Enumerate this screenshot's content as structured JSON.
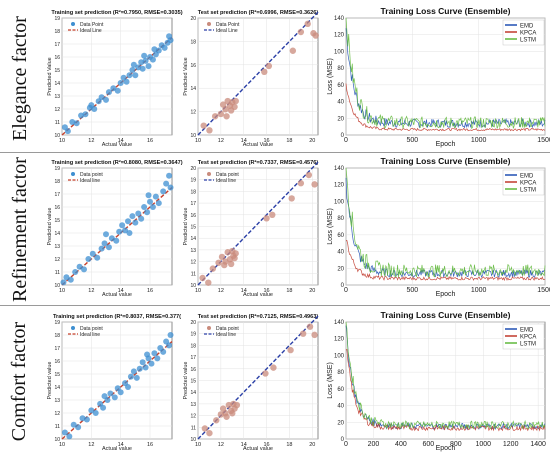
{
  "colors": {
    "train_point": "#3d8fd1",
    "test_point": "#c98b7c",
    "ideal_train": "#c8402b",
    "ideal_test": "#2a3fa6",
    "emd": "#1f4fb3",
    "kpca": "#c0392b",
    "lstm": "#5fb83a"
  },
  "rows": [
    {
      "label": "Elegance factor",
      "train": {
        "title": "Training set prediction (R²=0.7950, RMSE=0.3035)",
        "xlabel": "Actual Value",
        "ylabel": "Predicted Value",
        "legend": [
          "Data Point",
          "Ideal Line"
        ]
      },
      "test": {
        "title": "Test set prediction (R²=0.6996, RMSE=0.3626)",
        "xlabel": "Actual Value",
        "ylabel": "Predicted Value",
        "legend": [
          "Data Point",
          "Ideal Line"
        ]
      },
      "loss": {
        "title": "Training Loss Curve (Ensemble)",
        "xlabel": "Epoch",
        "ylabel": "Loss (MSE)",
        "legend": [
          "EMD",
          "KPCA",
          "LSTM"
        ]
      }
    },
    {
      "label": "Refinement factor",
      "train": {
        "title": "Training set prediction (R²=0.8080, RMSE=0.3647)",
        "xlabel": "Actual value",
        "ylabel": "Predicted value",
        "legend": [
          "Data point",
          "Ideal line"
        ]
      },
      "test": {
        "title": "Test set prediction (R²=0.7337, RMSE=0.4576)",
        "xlabel": "Actual value",
        "ylabel": "Predicted value",
        "legend": [
          "Data point",
          "Ideal line"
        ]
      },
      "loss": {
        "title": "Training Loss Curve (Ensemble)",
        "xlabel": "Epoch",
        "ylabel": "Loss (MSE)",
        "legend": [
          "EMD",
          "KPCA",
          "LSTM"
        ]
      }
    },
    {
      "label": "Comfort factor",
      "train": {
        "title": "Training set prediction (R²=0.8037, RMSE=0.377(",
        "xlabel": "Actual value",
        "ylabel": "Predicted value",
        "legend": [
          "Data point",
          "Ideal line"
        ]
      },
      "test": {
        "title": "Test set prediction (R²=0.7125, RMSE=0.4963)",
        "xlabel": "Actual value",
        "ylabel": "Predicted value",
        "legend": [
          "Data point",
          "Ideal line"
        ]
      },
      "loss": {
        "title": "Training Loss Curve (Ensemble)",
        "xlabel": "Epoch",
        "ylabel": "Loss (MSE)",
        "legend": [
          "EMD",
          "KPCA",
          "LSTM"
        ]
      }
    }
  ],
  "chart_data": [
    {
      "type": "scatter",
      "panel": "elegance-train",
      "xlim": [
        10,
        17.5
      ],
      "ylim": [
        10,
        19
      ],
      "xticks": [
        10,
        12,
        14,
        16
      ],
      "yticks": [
        10,
        11,
        12,
        13,
        14,
        15,
        16,
        17,
        18,
        19
      ],
      "ideal_line": [
        [
          10,
          10
        ],
        [
          17.5,
          17.5
        ]
      ],
      "points": [
        [
          10.2,
          10.6
        ],
        [
          10.4,
          10.3
        ],
        [
          10.7,
          11.0
        ],
        [
          11.0,
          10.9
        ],
        [
          11.3,
          11.5
        ],
        [
          11.6,
          11.6
        ],
        [
          11.9,
          12.1
        ],
        [
          12.2,
          12.0
        ],
        [
          12.5,
          12.6
        ],
        [
          12.7,
          12.9
        ],
        [
          13.0,
          12.7
        ],
        [
          13.2,
          13.3
        ],
        [
          13.5,
          13.6
        ],
        [
          13.8,
          13.4
        ],
        [
          14.0,
          14.0
        ],
        [
          14.2,
          14.4
        ],
        [
          14.4,
          14.1
        ],
        [
          14.6,
          14.6
        ],
        [
          14.8,
          15.0
        ],
        [
          15.0,
          14.6
        ],
        [
          15.2,
          15.2
        ],
        [
          15.4,
          15.6
        ],
        [
          15.5,
          15.1
        ],
        [
          15.7,
          15.7
        ],
        [
          15.9,
          15.3
        ],
        [
          16.0,
          16.0
        ],
        [
          16.2,
          15.8
        ],
        [
          16.4,
          16.2
        ],
        [
          16.6,
          16.5
        ],
        [
          16.8,
          16.9
        ],
        [
          17.0,
          16.7
        ],
        [
          17.2,
          17.1
        ],
        [
          17.3,
          17.6
        ],
        [
          17.4,
          17.3
        ],
        [
          12.0,
          12.3
        ],
        [
          14.9,
          15.4
        ],
        [
          15.6,
          16.1
        ],
        [
          16.3,
          16.6
        ]
      ]
    },
    {
      "type": "scatter",
      "panel": "elegance-test",
      "xlim": [
        10,
        20.5
      ],
      "ylim": [
        10,
        20
      ],
      "xticks": [
        10,
        12,
        14,
        16,
        18,
        20
      ],
      "yticks": [
        10,
        12,
        14,
        16,
        18,
        20
      ],
      "ideal_line": [
        [
          10,
          10
        ],
        [
          20.5,
          20.5
        ]
      ],
      "points": [
        [
          10.5,
          10.8
        ],
        [
          11.0,
          10.4
        ],
        [
          11.5,
          11.6
        ],
        [
          12.0,
          11.8
        ],
        [
          12.2,
          12.6
        ],
        [
          12.4,
          12.2
        ],
        [
          12.6,
          12.9
        ],
        [
          12.8,
          12.5
        ],
        [
          13.0,
          12.8
        ],
        [
          13.2,
          12.4
        ],
        [
          13.3,
          12.9
        ],
        [
          12.5,
          11.6
        ],
        [
          12.9,
          12.1
        ],
        [
          15.8,
          15.4
        ],
        [
          16.2,
          15.9
        ],
        [
          18.3,
          17.2
        ],
        [
          19.0,
          18.8
        ],
        [
          19.6,
          19.5
        ],
        [
          20.1,
          18.7
        ],
        [
          20.3,
          18.5
        ]
      ]
    },
    {
      "type": "line",
      "panel": "elegance-loss",
      "xlim": [
        0,
        1500
      ],
      "ylim": [
        0,
        140
      ],
      "xticks": [
        0,
        500,
        1000,
        1500
      ],
      "yticks": [
        0,
        20,
        40,
        60,
        80,
        100,
        120,
        140
      ],
      "series": [
        {
          "name": "EMD",
          "start": 124,
          "tail": 12,
          "noise": 10
        },
        {
          "name": "KPCA",
          "start": 60,
          "tail": 6,
          "noise": 3
        },
        {
          "name": "LSTM",
          "start": 140,
          "tail": 12,
          "noise": 14
        }
      ]
    },
    {
      "type": "scatter",
      "panel": "refinement-train",
      "xlim": [
        10,
        17.5
      ],
      "ylim": [
        10,
        19
      ],
      "xticks": [
        10,
        12,
        14,
        16
      ],
      "yticks": [
        10,
        11,
        12,
        13,
        14,
        15,
        16,
        17,
        18,
        19
      ],
      "ideal_line": [
        [
          10,
          10
        ],
        [
          17.5,
          17.5
        ]
      ],
      "points": [
        [
          10.1,
          10.2
        ],
        [
          10.3,
          10.6
        ],
        [
          10.6,
          10.4
        ],
        [
          10.9,
          11.0
        ],
        [
          11.2,
          11.4
        ],
        [
          11.5,
          11.2
        ],
        [
          11.8,
          12.0
        ],
        [
          12.1,
          12.4
        ],
        [
          12.4,
          12.1
        ],
        [
          12.7,
          12.8
        ],
        [
          12.9,
          13.2
        ],
        [
          13.2,
          12.9
        ],
        [
          13.4,
          13.6
        ],
        [
          13.7,
          13.4
        ],
        [
          13.9,
          14.1
        ],
        [
          14.1,
          14.6
        ],
        [
          14.3,
          14.2
        ],
        [
          14.5,
          14.9
        ],
        [
          14.8,
          15.3
        ],
        [
          15.0,
          14.8
        ],
        [
          15.2,
          15.5
        ],
        [
          15.4,
          15.1
        ],
        [
          15.6,
          16.0
        ],
        [
          15.8,
          15.6
        ],
        [
          16.0,
          16.4
        ],
        [
          16.2,
          16.0
        ],
        [
          16.4,
          16.8
        ],
        [
          16.6,
          16.3
        ],
        [
          16.9,
          17.2
        ],
        [
          17.1,
          17.8
        ],
        [
          17.3,
          18.4
        ],
        [
          17.4,
          17.5
        ],
        [
          13.0,
          13.9
        ],
        [
          14.6,
          14.0
        ],
        [
          15.9,
          16.9
        ]
      ]
    },
    {
      "type": "scatter",
      "panel": "refinement-test",
      "xlim": [
        10,
        20.5
      ],
      "ylim": [
        10,
        20
      ],
      "xticks": [
        10,
        12,
        14,
        16,
        18,
        20
      ],
      "yticks": [
        10,
        11,
        12,
        13,
        14,
        15,
        16,
        17,
        18,
        19,
        20
      ],
      "ideal_line": [
        [
          10,
          10
        ],
        [
          20.5,
          20.5
        ]
      ],
      "points": [
        [
          10.4,
          10.6
        ],
        [
          10.9,
          10.2
        ],
        [
          11.3,
          11.4
        ],
        [
          11.8,
          11.9
        ],
        [
          12.1,
          12.4
        ],
        [
          12.3,
          11.7
        ],
        [
          12.6,
          12.8
        ],
        [
          12.8,
          12.2
        ],
        [
          13.0,
          12.9
        ],
        [
          13.1,
          12.5
        ],
        [
          13.3,
          12.7
        ],
        [
          12.4,
          12.0
        ],
        [
          12.9,
          11.8
        ],
        [
          13.2,
          12.3
        ],
        [
          16.0,
          15.7
        ],
        [
          16.5,
          16.0
        ],
        [
          18.2,
          17.4
        ],
        [
          19.0,
          18.7
        ],
        [
          19.7,
          19.4
        ],
        [
          20.2,
          18.6
        ]
      ]
    },
    {
      "type": "line",
      "panel": "refinement-loss",
      "xlim": [
        0,
        1500
      ],
      "ylim": [
        0,
        140
      ],
      "xticks": [
        0,
        500,
        1000,
        1500
      ],
      "yticks": [
        0,
        20,
        40,
        60,
        80,
        100,
        120,
        140
      ],
      "series": [
        {
          "name": "EMD",
          "start": 120,
          "tail": 12,
          "noise": 9
        },
        {
          "name": "KPCA",
          "start": 55,
          "tail": 7,
          "noise": 4
        },
        {
          "name": "LSTM",
          "start": 138,
          "tail": 14,
          "noise": 15
        }
      ]
    },
    {
      "type": "scatter",
      "panel": "comfort-train",
      "xlim": [
        10,
        17.5
      ],
      "ylim": [
        10,
        19
      ],
      "xticks": [
        10,
        12,
        14,
        16
      ],
      "yticks": [
        10,
        11,
        12,
        13,
        14,
        15,
        16,
        17,
        18,
        19
      ],
      "ideal_line": [
        [
          10,
          10
        ],
        [
          17.5,
          17.5
        ]
      ],
      "points": [
        [
          10.2,
          10.5
        ],
        [
          10.5,
          10.2
        ],
        [
          10.8,
          11.1
        ],
        [
          11.1,
          10.9
        ],
        [
          11.4,
          11.6
        ],
        [
          11.7,
          11.5
        ],
        [
          12.0,
          12.2
        ],
        [
          12.3,
          12.0
        ],
        [
          12.6,
          12.7
        ],
        [
          12.8,
          12.4
        ],
        [
          13.1,
          13.0
        ],
        [
          13.3,
          13.5
        ],
        [
          13.6,
          13.2
        ],
        [
          13.8,
          13.9
        ],
        [
          14.0,
          13.6
        ],
        [
          14.3,
          14.3
        ],
        [
          14.5,
          14.0
        ],
        [
          14.7,
          14.8
        ],
        [
          14.9,
          15.2
        ],
        [
          15.1,
          14.7
        ],
        [
          15.3,
          15.4
        ],
        [
          15.5,
          15.9
        ],
        [
          15.7,
          15.5
        ],
        [
          15.9,
          16.2
        ],
        [
          16.1,
          15.8
        ],
        [
          16.3,
          16.6
        ],
        [
          16.5,
          16.2
        ],
        [
          16.7,
          17.0
        ],
        [
          16.9,
          16.7
        ],
        [
          17.1,
          17.5
        ],
        [
          17.3,
          17.2
        ],
        [
          17.4,
          18.0
        ],
        [
          12.9,
          13.3
        ],
        [
          15.8,
          16.5
        ]
      ]
    },
    {
      "type": "scatter",
      "panel": "comfort-test",
      "xlim": [
        10,
        20.5
      ],
      "ylim": [
        10,
        20
      ],
      "xticks": [
        10,
        12,
        14,
        16,
        18,
        20
      ],
      "yticks": [
        10,
        11,
        12,
        13,
        14,
        15,
        16,
        17,
        18,
        19,
        20
      ],
      "ideal_line": [
        [
          10,
          10
        ],
        [
          20.5,
          20.5
        ]
      ],
      "points": [
        [
          10.6,
          10.9
        ],
        [
          11.0,
          10.5
        ],
        [
          11.6,
          11.6
        ],
        [
          12.0,
          12.1
        ],
        [
          12.2,
          12.6
        ],
        [
          12.4,
          12.2
        ],
        [
          12.7,
          12.9
        ],
        [
          12.9,
          12.4
        ],
        [
          13.1,
          13.0
        ],
        [
          13.2,
          12.6
        ],
        [
          13.4,
          12.9
        ],
        [
          12.5,
          11.9
        ],
        [
          13.0,
          12.2
        ],
        [
          15.9,
          15.6
        ],
        [
          16.6,
          16.1
        ],
        [
          18.1,
          17.6
        ],
        [
          19.2,
          19.0
        ],
        [
          19.8,
          19.6
        ],
        [
          20.2,
          18.9
        ]
      ]
    },
    {
      "type": "line",
      "panel": "comfort-loss",
      "xlim": [
        0,
        1450
      ],
      "ylim": [
        0,
        140
      ],
      "xticks": [
        0,
        200,
        400,
        600,
        800,
        1000,
        1200,
        1400
      ],
      "yticks": [
        0,
        20,
        40,
        60,
        80,
        100,
        120,
        140
      ],
      "series": [
        {
          "name": "EMD",
          "start": 130,
          "tail": 14,
          "noise": 7
        },
        {
          "name": "KPCA",
          "start": 110,
          "tail": 12,
          "noise": 6
        },
        {
          "name": "LSTM",
          "start": 135,
          "tail": 15,
          "noise": 9
        }
      ]
    }
  ]
}
